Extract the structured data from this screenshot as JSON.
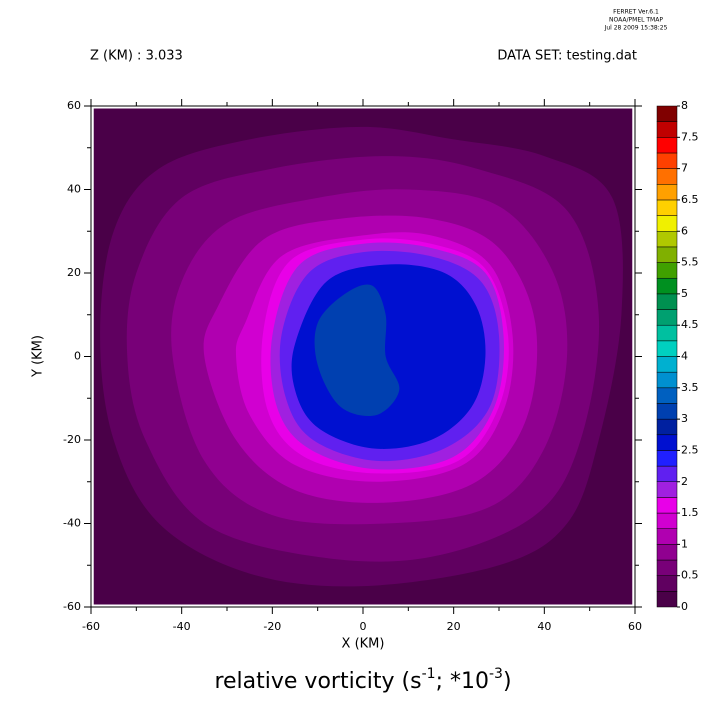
{
  "chart_data": {
    "type": "contour",
    "stamp": [
      "FERRET  Ver.6.1",
      "NOAA/PMEL TMAP",
      "Jul 28 2009 15:38:25"
    ],
    "header_left": "Z (KM) : 3.033",
    "header_right": "DATA SET: testing.dat",
    "title": [
      "relative vorticity (s",
      "-1",
      "; *10",
      "-3",
      ")"
    ],
    "xlabel": "X (KM)",
    "ylabel": "Y (KM)",
    "xlim": [
      -60,
      60
    ],
    "ylim": [
      -60,
      60
    ],
    "xticks": [
      -60,
      -40,
      -20,
      0,
      20,
      40,
      60
    ],
    "yticks": [
      -60,
      -40,
      -20,
      0,
      20,
      40,
      60
    ],
    "colorbar": {
      "levels": [
        0,
        0.25,
        0.5,
        0.75,
        1,
        1.25,
        1.5,
        1.75,
        2,
        2.25,
        2.5,
        2.75,
        3,
        3.25,
        3.5,
        3.75,
        4,
        4.25,
        4.5,
        4.75,
        5,
        5.25,
        5.5,
        5.75,
        6,
        6.25,
        6.5,
        6.75,
        7,
        7.25,
        7.5,
        7.75,
        8
      ],
      "colors": [
        "#4a0048",
        "#600060",
        "#780078",
        "#900090",
        "#b000b0",
        "#d000d0",
        "#e800e8",
        "#a020e0",
        "#6020f0",
        "#2020ff",
        "#0010d0",
        "#0020a0",
        "#0040b0",
        "#0060c0",
        "#0090d0",
        "#00b0d0",
        "#00d0c0",
        "#00c0a0",
        "#00a070",
        "#009050",
        "#009020",
        "#40a000",
        "#80b000",
        "#b0c800",
        "#f0f000",
        "#ffd000",
        "#ffa000",
        "#ff7000",
        "#ff4000",
        "#ff0000",
        "#c00000",
        "#800000"
      ],
      "ticks": [
        0,
        0.5,
        1,
        1.5,
        2,
        2.5,
        3,
        3.5,
        4,
        4.5,
        5,
        5.5,
        6,
        6.5,
        7,
        7.5,
        8
      ]
    },
    "regions": [
      {
        "level": 0,
        "points": [
          [
            -59.4,
            -59.4
          ],
          [
            59.4,
            -59.4
          ],
          [
            59.4,
            59.4
          ],
          [
            -59.4,
            59.4
          ]
        ]
      },
      {
        "level": 0.25,
        "points": [
          [
            -55,
            30
          ],
          [
            -45,
            45
          ],
          [
            -25,
            52
          ],
          [
            0,
            55
          ],
          [
            20,
            52
          ],
          [
            40,
            48
          ],
          [
            55,
            38
          ],
          [
            57,
            10
          ],
          [
            52,
            -20
          ],
          [
            45,
            -40
          ],
          [
            30,
            -50
          ],
          [
            0,
            -55
          ],
          [
            -25,
            -52
          ],
          [
            -45,
            -40
          ],
          [
            -55,
            -20
          ],
          [
            -58,
            5
          ]
        ]
      },
      {
        "level": 0.5,
        "points": [
          [
            -50,
            20
          ],
          [
            -40,
            38
          ],
          [
            -20,
            45
          ],
          [
            5,
            48
          ],
          [
            25,
            45
          ],
          [
            45,
            35
          ],
          [
            52,
            10
          ],
          [
            48,
            -20
          ],
          [
            38,
            -38
          ],
          [
            15,
            -48
          ],
          [
            -10,
            -48
          ],
          [
            -35,
            -40
          ],
          [
            -48,
            -20
          ],
          [
            -52,
            0
          ]
        ]
      },
      {
        "level": 0.75,
        "points": [
          [
            -40,
            18
          ],
          [
            -30,
            32
          ],
          [
            -10,
            38
          ],
          [
            10,
            40
          ],
          [
            30,
            36
          ],
          [
            42,
            20
          ],
          [
            45,
            0
          ],
          [
            40,
            -22
          ],
          [
            28,
            -36
          ],
          [
            5,
            -40
          ],
          [
            -20,
            -38
          ],
          [
            -35,
            -25
          ],
          [
            -42,
            0
          ]
        ]
      },
      {
        "level": 1,
        "points": [
          [
            -32,
            12
          ],
          [
            -22,
            28
          ],
          [
            -5,
            33
          ],
          [
            15,
            33
          ],
          [
            30,
            26
          ],
          [
            38,
            8
          ],
          [
            36,
            -15
          ],
          [
            25,
            -30
          ],
          [
            5,
            -35
          ],
          [
            -15,
            -32
          ],
          [
            -28,
            -20
          ],
          [
            -35,
            0
          ]
        ]
      },
      {
        "level": 1.25,
        "points": [
          [
            -26,
            8
          ],
          [
            -18,
            24
          ],
          [
            0,
            29
          ],
          [
            15,
            29
          ],
          [
            28,
            22
          ],
          [
            33,
            5
          ],
          [
            31,
            -13
          ],
          [
            22,
            -26
          ],
          [
            3,
            -30
          ],
          [
            -15,
            -26
          ],
          [
            -25,
            -14
          ],
          [
            -28,
            0
          ]
        ]
      },
      {
        "level": 1.5,
        "points": [
          [
            -22,
            6
          ],
          [
            -16,
            23
          ],
          [
            0,
            28
          ],
          [
            15,
            27
          ],
          [
            27,
            21
          ],
          [
            32,
            5
          ],
          [
            30,
            -12
          ],
          [
            21,
            -25
          ],
          [
            3,
            -28
          ],
          [
            -13,
            -24
          ],
          [
            -21,
            -13
          ]
        ]
      },
      {
        "level": 1.75,
        "points": [
          [
            -20,
            5
          ],
          [
            -14,
            22
          ],
          [
            0,
            27
          ],
          [
            15,
            26
          ],
          [
            27,
            20
          ],
          [
            31,
            5
          ],
          [
            29,
            -12
          ],
          [
            20,
            -24
          ],
          [
            3,
            -27
          ],
          [
            -12,
            -22
          ],
          [
            -19,
            -12
          ]
        ]
      },
      {
        "level": 2,
        "points": [
          [
            -18,
            5
          ],
          [
            -12,
            20
          ],
          [
            0,
            25
          ],
          [
            15,
            24
          ],
          [
            26,
            18
          ],
          [
            30,
            5
          ],
          [
            28,
            -12
          ],
          [
            18,
            -22
          ],
          [
            3,
            -25
          ],
          [
            -11,
            -20
          ],
          [
            -17,
            -10
          ]
        ]
      },
      {
        "level": 2.5,
        "points": [
          [
            -15,
            3
          ],
          [
            -8,
            18
          ],
          [
            5,
            22
          ],
          [
            18,
            20
          ],
          [
            25,
            12
          ],
          [
            27,
            0
          ],
          [
            24,
            -12
          ],
          [
            15,
            -20
          ],
          [
            2,
            -22
          ],
          [
            -10,
            -17
          ],
          [
            -15,
            -8
          ]
        ]
      },
      {
        "level": 3,
        "points": [
          [
            -10,
            -2
          ],
          [
            -10,
            8
          ],
          [
            -4,
            15
          ],
          [
            2,
            17
          ],
          [
            5,
            10
          ],
          [
            5,
            0
          ],
          [
            8,
            -8
          ],
          [
            3,
            -14
          ],
          [
            -5,
            -12
          ]
        ]
      }
    ]
  }
}
